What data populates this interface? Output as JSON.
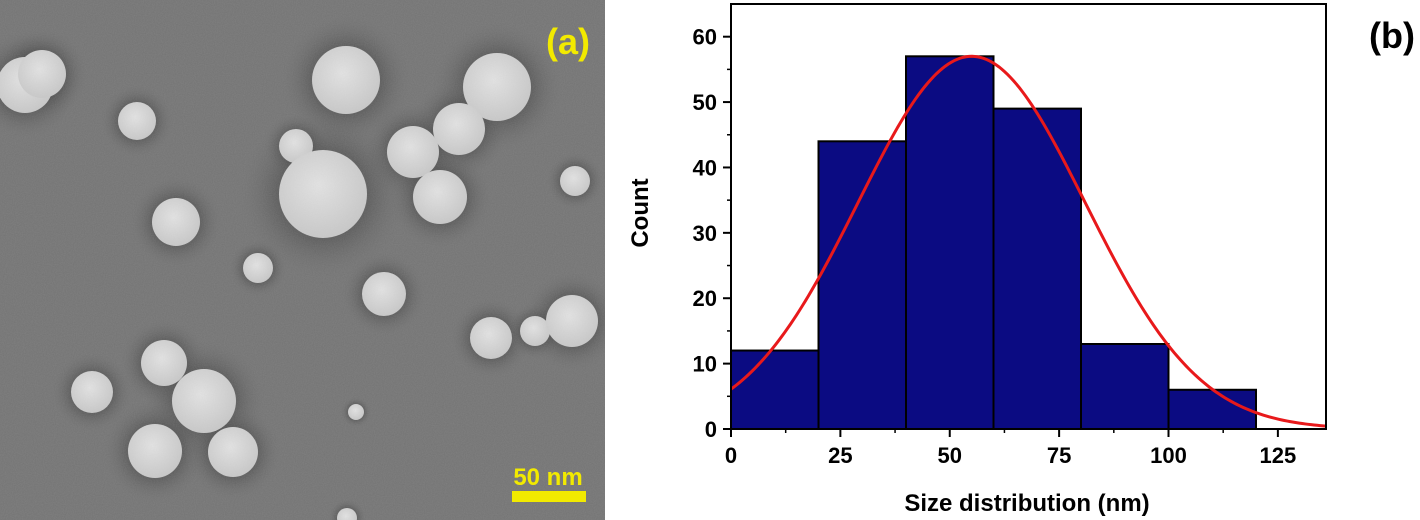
{
  "panel_a": {
    "label": "(a)",
    "label_color": "#f2ea00",
    "scale_bar": {
      "text": "50 nm",
      "color": "#f2ea00"
    },
    "particles": [
      {
        "x": 25,
        "y": 85,
        "r": 28
      },
      {
        "x": 42,
        "y": 74,
        "r": 24
      },
      {
        "x": 137,
        "y": 121,
        "r": 19
      },
      {
        "x": 346,
        "y": 80,
        "r": 34
      },
      {
        "x": 497,
        "y": 87,
        "r": 34
      },
      {
        "x": 459,
        "y": 129,
        "r": 26
      },
      {
        "x": 413,
        "y": 152,
        "r": 26
      },
      {
        "x": 296,
        "y": 146,
        "r": 17
      },
      {
        "x": 323,
        "y": 194,
        "r": 44
      },
      {
        "x": 440,
        "y": 197,
        "r": 27
      },
      {
        "x": 575,
        "y": 181,
        "r": 15
      },
      {
        "x": 176,
        "y": 222,
        "r": 24
      },
      {
        "x": 258,
        "y": 268,
        "r": 15
      },
      {
        "x": 384,
        "y": 294,
        "r": 22
      },
      {
        "x": 491,
        "y": 338,
        "r": 21
      },
      {
        "x": 535,
        "y": 331,
        "r": 15
      },
      {
        "x": 572,
        "y": 321,
        "r": 26
      },
      {
        "x": 164,
        "y": 363,
        "r": 23
      },
      {
        "x": 92,
        "y": 392,
        "r": 21
      },
      {
        "x": 204,
        "y": 401,
        "r": 32
      },
      {
        "x": 155,
        "y": 451,
        "r": 27
      },
      {
        "x": 233,
        "y": 452,
        "r": 25
      },
      {
        "x": 356,
        "y": 412,
        "r": 8
      },
      {
        "x": 347,
        "y": 518,
        "r": 10
      }
    ]
  },
  "panel_b": {
    "label": "(b)"
  },
  "chart_data": {
    "type": "bar",
    "bins": [
      {
        "start": 0,
        "end": 20,
        "count": 12
      },
      {
        "start": 20,
        "end": 40,
        "count": 44
      },
      {
        "start": 40,
        "end": 60,
        "count": 57
      },
      {
        "start": 60,
        "end": 80,
        "count": 49
      },
      {
        "start": 80,
        "end": 100,
        "count": 13
      },
      {
        "start": 100,
        "end": 120,
        "count": 6
      }
    ],
    "fit": {
      "type": "gaussian",
      "amplitude": 57,
      "center": 55,
      "sigma": 26
    },
    "xlabel": "Size distribution (nm)",
    "ylabel": "Count",
    "xlim": [
      0,
      136
    ],
    "ylim": [
      0,
      65
    ],
    "xticks": [
      0,
      25,
      50,
      75,
      100,
      125
    ],
    "yticks": [
      0,
      10,
      20,
      30,
      40,
      50,
      60
    ],
    "grid": false,
    "bar_color": "#0b0b82",
    "fit_color": "#e8191b"
  }
}
